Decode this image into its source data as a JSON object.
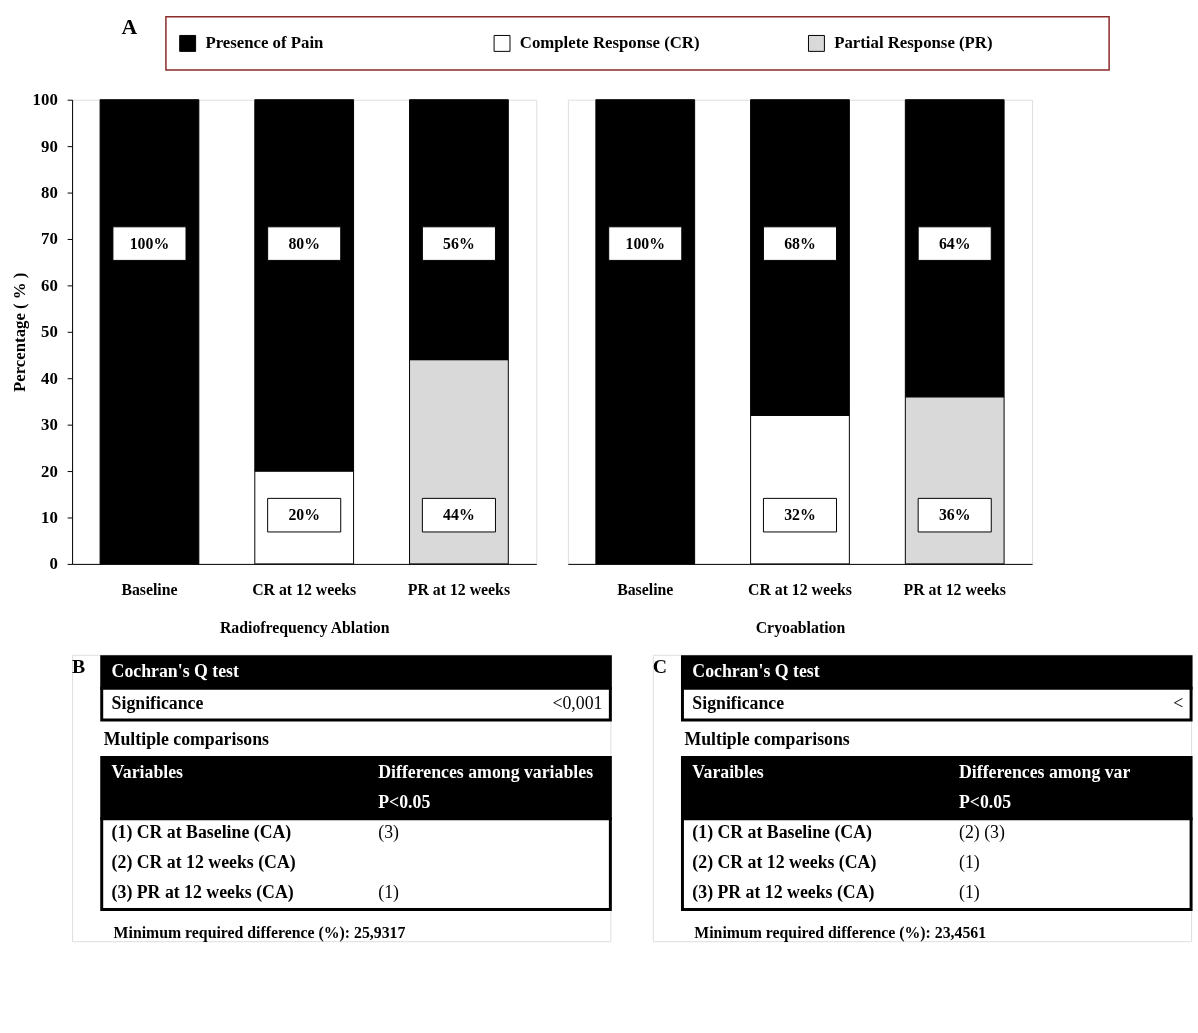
{
  "chart_data": [
    {
      "type": "bar",
      "stacked": true,
      "xlabel": "Radiofrequency Ablation",
      "ylabel": "Percentage ( % )",
      "categories": [
        "Baseline",
        "CR at 12 weeks",
        "PR at 12 weeks"
      ],
      "series": [
        {
          "name": "Complete Response (CR)",
          "color": "#ffffff",
          "values": [
            null,
            20,
            null
          ],
          "value_labels": [
            null,
            "20%",
            null
          ]
        },
        {
          "name": "Partial Response (PR)",
          "color": "#d9d9d9",
          "values": [
            null,
            null,
            44
          ],
          "value_labels": [
            null,
            null,
            "44%"
          ]
        },
        {
          "name": "Presence of Pain",
          "color": "#000000",
          "values": [
            100,
            80,
            56
          ],
          "value_labels": [
            "100%",
            "80%",
            "56%"
          ]
        }
      ],
      "ylim": [
        0,
        100
      ],
      "yticks": [
        0,
        10,
        20,
        30,
        40,
        50,
        60,
        70,
        80,
        90,
        100
      ],
      "grid": false,
      "legend": "top",
      "annotations": [
        "A"
      ]
    },
    {
      "type": "bar",
      "stacked": true,
      "xlabel": "Cryoablation",
      "categories": [
        "Baseline",
        "CR at 12 weeks",
        "PR at 12 weeks"
      ],
      "series": [
        {
          "name": "Complete Response (CR)",
          "color": "#ffffff",
          "values": [
            null,
            32,
            null
          ],
          "value_labels": [
            null,
            "32%",
            null
          ]
        },
        {
          "name": "Partial Response (PR)",
          "color": "#d9d9d9",
          "values": [
            null,
            null,
            36
          ],
          "value_labels": [
            null,
            null,
            "36%"
          ]
        },
        {
          "name": "Presence of Pain",
          "color": "#000000",
          "values": [
            100,
            68,
            64
          ],
          "value_labels": [
            "100%",
            "68%",
            "64%"
          ]
        }
      ],
      "ylim": [
        0,
        100
      ],
      "grid": false,
      "tick_labels": "x"
    },
    {
      "type": "other",
      "annotations": [
        "B",
        "Cochran's Q test",
        "Significance",
        "<0,001",
        "Multiple comparisons",
        "Variables",
        "Differences among variables",
        "P<0.05",
        "(1) CR at Baseline (CA)",
        "(3)",
        "(2) CR at 12 weeks (CA)",
        null,
        "(3) PR at 12 weeks (CA)",
        "(1)",
        "Minimum required difference (%): 25,9317"
      ]
    },
    {
      "type": "other",
      "annotations": [
        "C",
        "Cochran's Q test",
        "Significance",
        "<",
        "Multiple comparisons",
        "Varaibles",
        "Differences among var",
        "P<0.05",
        "(1) CR at Baseline (CA)",
        "(2) (3)",
        "(2) CR at 12 weeks (CA)",
        "(1)",
        "(3) PR at 12 weeks (CA)",
        "(1)",
        "Minimum required difference (%): 23,4561"
      ]
    }
  ]
}
